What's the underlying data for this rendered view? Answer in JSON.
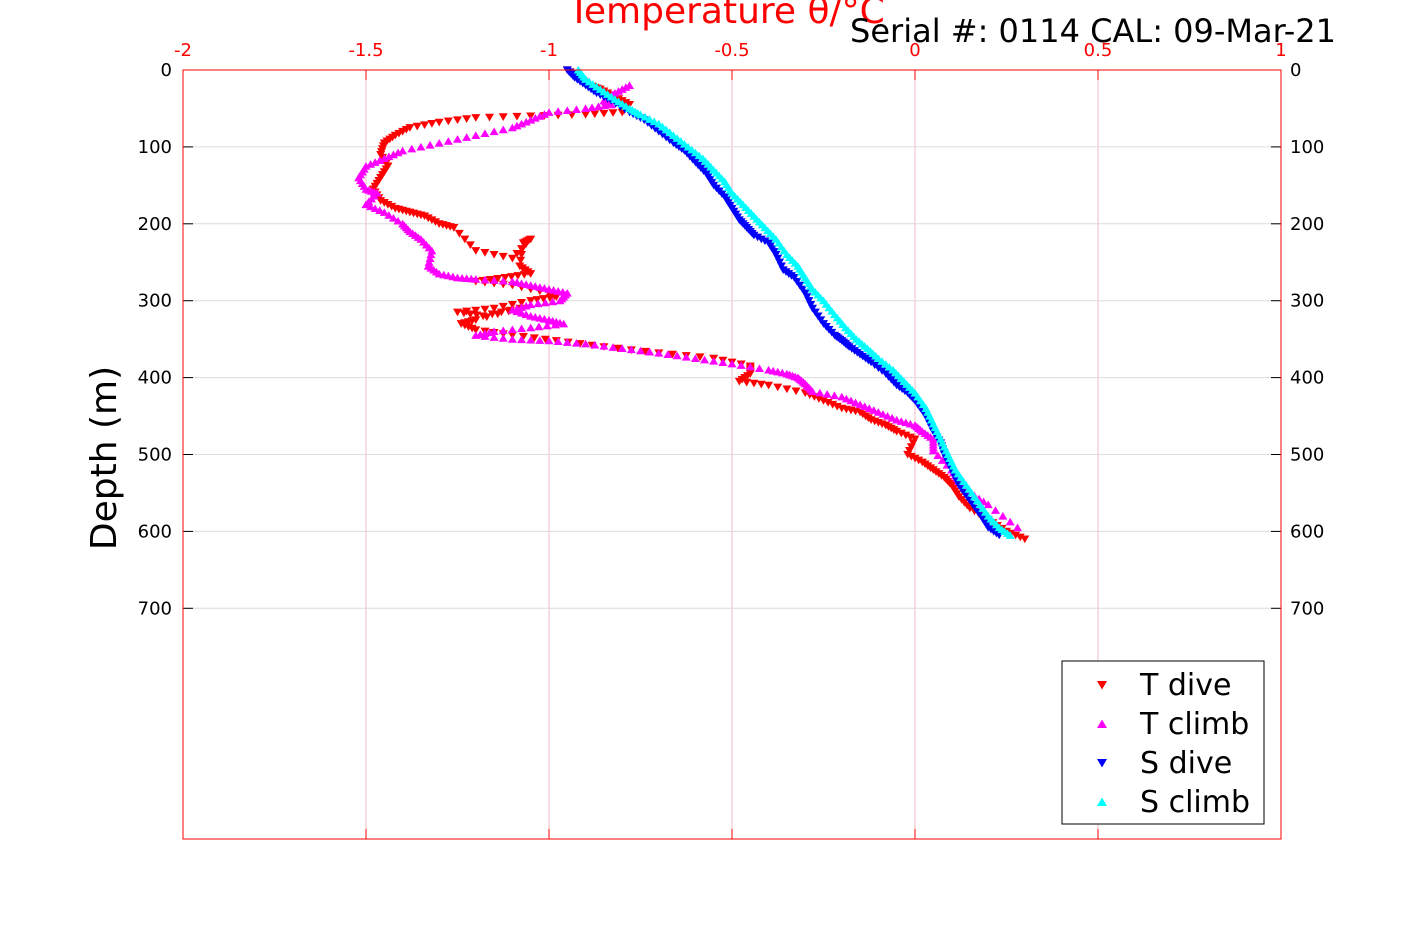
{
  "chart_data": {
    "type": "scatter",
    "title": "Temperature θ/°C",
    "subtitle": "Serial #: 0114  CAL: 09-Mar-21",
    "xlabel": "Temperature θ/°C",
    "ylabel": "Depth (m)",
    "xlim": [
      -2,
      1
    ],
    "ylim": [
      0,
      1000
    ],
    "y_reversed": true,
    "x_ticks": [
      "-2",
      "-1.5",
      "-1",
      "-0.5",
      "0",
      "0.5",
      "1"
    ],
    "x_tick_values": [
      -2,
      -1.5,
      -1,
      -0.5,
      0,
      0.5,
      1
    ],
    "y_ticks": [
      "0",
      "100",
      "200",
      "300",
      "400",
      "500",
      "600",
      "700"
    ],
    "y_tick_values": [
      0,
      100,
      200,
      300,
      400,
      500,
      600,
      700
    ],
    "grid": true,
    "legend_position": "bottom-right",
    "colors": {
      "axis": "#ff0000",
      "grid": "#f3b9c6"
    },
    "series": [
      {
        "name": "T dive",
        "color": "#ff0000",
        "marker": "triangle-down",
        "x": [
          -0.95,
          -0.92,
          -0.89,
          -0.86,
          -0.82,
          -0.78,
          -0.8,
          -0.9,
          -1.05,
          -1.2,
          -1.3,
          -1.38,
          -1.42,
          -1.45,
          -1.46,
          -1.44,
          -1.46,
          -1.48,
          -1.46,
          -1.42,
          -1.38,
          -1.34,
          -1.3,
          -1.26,
          -1.2,
          -1.1,
          -1.05,
          -1.07,
          -1.08,
          -1.05,
          -1.12,
          -1.2,
          -1.1,
          -1.0,
          -0.98,
          -1.05,
          -1.15,
          -1.25,
          -1.18,
          -1.08,
          -1.2,
          -1.24,
          -1.2,
          -1.1,
          -0.98,
          -0.85,
          -0.7,
          -0.55,
          -0.45,
          -0.45,
          -0.48,
          -0.4,
          -0.3,
          -0.25,
          -0.2,
          -0.15,
          -0.12,
          -0.08,
          -0.05,
          0.0,
          -0.02,
          0.02,
          0.05,
          0.08,
          0.1,
          0.12,
          0.15,
          0.2,
          0.25,
          0.3
        ],
        "y": [
          0,
          10,
          20,
          25,
          35,
          45,
          55,
          58,
          60,
          62,
          68,
          75,
          85,
          95,
          110,
          125,
          140,
          155,
          170,
          180,
          185,
          190,
          200,
          205,
          235,
          245,
          220,
          225,
          255,
          265,
          270,
          275,
          280,
          290,
          295,
          300,
          310,
          315,
          320,
          310,
          325,
          330,
          338,
          345,
          352,
          360,
          368,
          375,
          385,
          395,
          405,
          410,
          420,
          430,
          440,
          445,
          455,
          462,
          470,
          480,
          500,
          510,
          520,
          530,
          540,
          555,
          570,
          585,
          600,
          610
        ]
      },
      {
        "name": "T climb",
        "color": "#ff00ff",
        "marker": "triangle-up",
        "x": [
          -0.78,
          -0.82,
          -0.85,
          -0.83,
          -0.9,
          -1.0,
          -1.05,
          -1.1,
          -1.2,
          -1.3,
          -1.4,
          -1.45,
          -1.5,
          -1.52,
          -1.5,
          -1.47,
          -1.5,
          -1.45,
          -1.4,
          -1.38,
          -1.35,
          -1.32,
          -1.33,
          -1.3,
          -1.25,
          -1.2,
          -1.1,
          -1.05,
          -1.0,
          -0.95,
          -0.97,
          -1.05,
          -1.1,
          -1.05,
          -1.0,
          -0.96,
          -1.05,
          -1.15,
          -1.2,
          -1.1,
          -1.0,
          -0.9,
          -0.8,
          -0.7,
          -0.6,
          -0.5,
          -0.4,
          -0.35,
          -0.32,
          -0.3,
          -0.28,
          -0.2,
          -0.15,
          -0.1,
          -0.05,
          0.0,
          0.02,
          0.05,
          0.05,
          0.1,
          0.12,
          0.15,
          0.2,
          0.28
        ],
        "y": [
          20,
          30,
          40,
          45,
          50,
          55,
          65,
          75,
          85,
          95,
          105,
          115,
          125,
          140,
          155,
          160,
          175,
          185,
          200,
          210,
          220,
          235,
          255,
          265,
          270,
          272,
          275,
          280,
          285,
          290,
          300,
          305,
          312,
          320,
          325,
          330,
          335,
          340,
          345,
          350,
          352,
          356,
          362,
          368,
          375,
          382,
          390,
          395,
          400,
          408,
          418,
          425,
          435,
          445,
          455,
          462,
          470,
          480,
          495,
          520,
          535,
          550,
          565,
          595
        ]
      },
      {
        "name": "S dive",
        "color": "#0000ff",
        "marker": "triangle-down",
        "x": [
          -0.95,
          -0.93,
          -0.9,
          -0.87,
          -0.83,
          -0.78,
          -0.74,
          -0.7,
          -0.66,
          -0.63,
          -0.6,
          -0.57,
          -0.55,
          -0.52,
          -0.5,
          -0.48,
          -0.46,
          -0.44,
          -0.4,
          -0.38,
          -0.36,
          -0.33,
          -0.3,
          -0.28,
          -0.25,
          -0.22,
          -0.2,
          -0.18,
          -0.15,
          -0.12,
          -0.08,
          -0.05,
          -0.02,
          0.0,
          0.03,
          0.05,
          0.07,
          0.08,
          0.1,
          0.12,
          0.15,
          0.18,
          0.2,
          0.23
        ],
        "y": [
          0,
          10,
          20,
          30,
          40,
          55,
          65,
          80,
          95,
          105,
          120,
          135,
          150,
          165,
          180,
          195,
          205,
          215,
          225,
          240,
          260,
          270,
          290,
          310,
          330,
          345,
          352,
          360,
          370,
          380,
          395,
          410,
          420,
          430,
          450,
          470,
          485,
          500,
          520,
          540,
          560,
          580,
          595,
          605
        ]
      },
      {
        "name": "S climb",
        "color": "#00ffff",
        "marker": "triangle-up",
        "x": [
          -0.92,
          -0.9,
          -0.86,
          -0.82,
          -0.78,
          -0.75,
          -0.7,
          -0.66,
          -0.62,
          -0.58,
          -0.55,
          -0.52,
          -0.5,
          -0.47,
          -0.44,
          -0.41,
          -0.38,
          -0.35,
          -0.32,
          -0.3,
          -0.28,
          -0.25,
          -0.22,
          -0.19,
          -0.16,
          -0.13,
          -0.1,
          -0.06,
          -0.03,
          0.0,
          0.03,
          0.05,
          0.07,
          0.09,
          0.11,
          0.14,
          0.17,
          0.2,
          0.23,
          0.26
        ],
        "y": [
          0,
          12,
          25,
          38,
          50,
          58,
          70,
          85,
          100,
          115,
          130,
          145,
          160,
          175,
          190,
          205,
          220,
          240,
          255,
          270,
          285,
          300,
          318,
          335,
          350,
          362,
          375,
          390,
          405,
          420,
          440,
          460,
          480,
          500,
          520,
          540,
          560,
          580,
          595,
          605
        ]
      }
    ]
  }
}
